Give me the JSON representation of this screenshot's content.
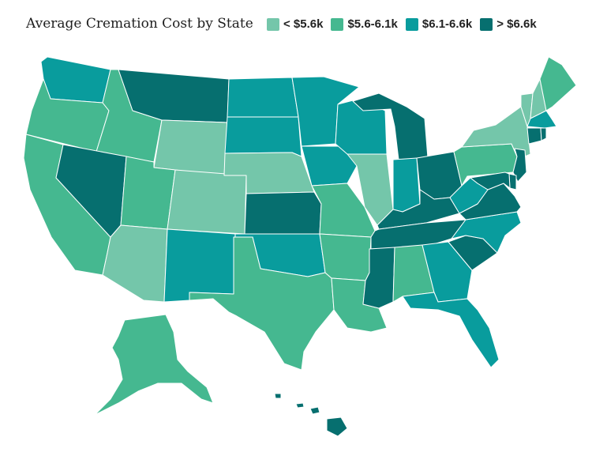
{
  "title": "Average Cremation Cost by State",
  "legend": [
    {
      "label": "< $5.6k",
      "color": "#74c6aa"
    },
    {
      "label": "$5.6-6.1k",
      "color": "#45b890"
    },
    {
      "label": "$6.1-6.6k",
      "color": "#099c9d"
    },
    {
      "label": "> $6.6k",
      "color": "#066f6f"
    }
  ],
  "map": {
    "states": [
      {
        "name": "Washington",
        "tier": 2
      },
      {
        "name": "Oregon",
        "tier": 1
      },
      {
        "name": "California",
        "tier": 1
      },
      {
        "name": "Idaho",
        "tier": 1
      },
      {
        "name": "Nevada",
        "tier": 3
      },
      {
        "name": "Montana",
        "tier": 3
      },
      {
        "name": "Wyoming",
        "tier": 0
      },
      {
        "name": "Utah",
        "tier": 1
      },
      {
        "name": "Arizona",
        "tier": 0
      },
      {
        "name": "Colorado",
        "tier": 0
      },
      {
        "name": "New Mexico",
        "tier": 2
      },
      {
        "name": "North Dakota",
        "tier": 2
      },
      {
        "name": "South Dakota",
        "tier": 2
      },
      {
        "name": "Nebraska",
        "tier": 0
      },
      {
        "name": "Kansas",
        "tier": 3
      },
      {
        "name": "Oklahoma",
        "tier": 2
      },
      {
        "name": "Texas",
        "tier": 1
      },
      {
        "name": "Minnesota",
        "tier": 2
      },
      {
        "name": "Iowa",
        "tier": 2
      },
      {
        "name": "Missouri",
        "tier": 1
      },
      {
        "name": "Arkansas",
        "tier": 1
      },
      {
        "name": "Louisiana",
        "tier": 1
      },
      {
        "name": "Wisconsin",
        "tier": 2
      },
      {
        "name": "Illinois",
        "tier": 0
      },
      {
        "name": "Michigan",
        "tier": 3
      },
      {
        "name": "Indiana",
        "tier": 2
      },
      {
        "name": "Ohio",
        "tier": 3
      },
      {
        "name": "Kentucky",
        "tier": 3
      },
      {
        "name": "Tennessee",
        "tier": 3
      },
      {
        "name": "Mississippi",
        "tier": 3
      },
      {
        "name": "Alabama",
        "tier": 1
      },
      {
        "name": "Georgia",
        "tier": 2
      },
      {
        "name": "Florida",
        "tier": 2
      },
      {
        "name": "South Carolina",
        "tier": 3
      },
      {
        "name": "North Carolina",
        "tier": 2
      },
      {
        "name": "Virginia",
        "tier": 3
      },
      {
        "name": "West Virginia",
        "tier": 2
      },
      {
        "name": "Pennsylvania",
        "tier": 1
      },
      {
        "name": "New York",
        "tier": 0
      },
      {
        "name": "Vermont",
        "tier": 0
      },
      {
        "name": "New Hampshire",
        "tier": 0
      },
      {
        "name": "Maine",
        "tier": 1
      },
      {
        "name": "Massachusetts",
        "tier": 2
      },
      {
        "name": "Connecticut",
        "tier": 3
      },
      {
        "name": "Rhode Island",
        "tier": 3
      },
      {
        "name": "New Jersey",
        "tier": 3
      },
      {
        "name": "Delaware",
        "tier": 3
      },
      {
        "name": "Maryland",
        "tier": 3
      },
      {
        "name": "Alaska",
        "tier": 1
      },
      {
        "name": "Hawaii",
        "tier": 3
      }
    ]
  }
}
